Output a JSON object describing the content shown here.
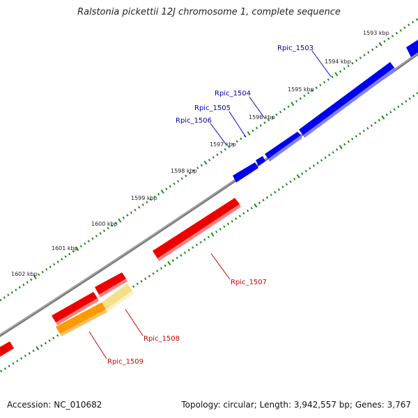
{
  "title": "Ralstonia pickettii 12J chromosome 1, complete sequence",
  "footer": {
    "accession": "Accession: NC_010682",
    "summary": "Topology: circular; Length: 3,942,557 bp; Genes: 3,767"
  },
  "colors": {
    "backbone": "#808080",
    "forward_gene": "#0000ee",
    "reverse_gene": "#ee0000",
    "orange_gene": "#ff9900",
    "pale_gene": "#f2e08a",
    "tick": "#1a8a1a"
  },
  "scale_labels": [
    "1593 kbp",
    "1594 kbp",
    "1595 kbp",
    "1596 kbp",
    "1597 kbp",
    "1598 kbp",
    "1599 kbp",
    "1600 kbp",
    "1601 kbp",
    "1602 kbp"
  ],
  "forward_genes": [
    "Rpic_1503",
    "Rpic_1504",
    "Rpic_1505",
    "Rpic_1506"
  ],
  "reverse_genes": [
    "Rpic_1507",
    "Rpic_1508",
    "Rpic_1509"
  ]
}
